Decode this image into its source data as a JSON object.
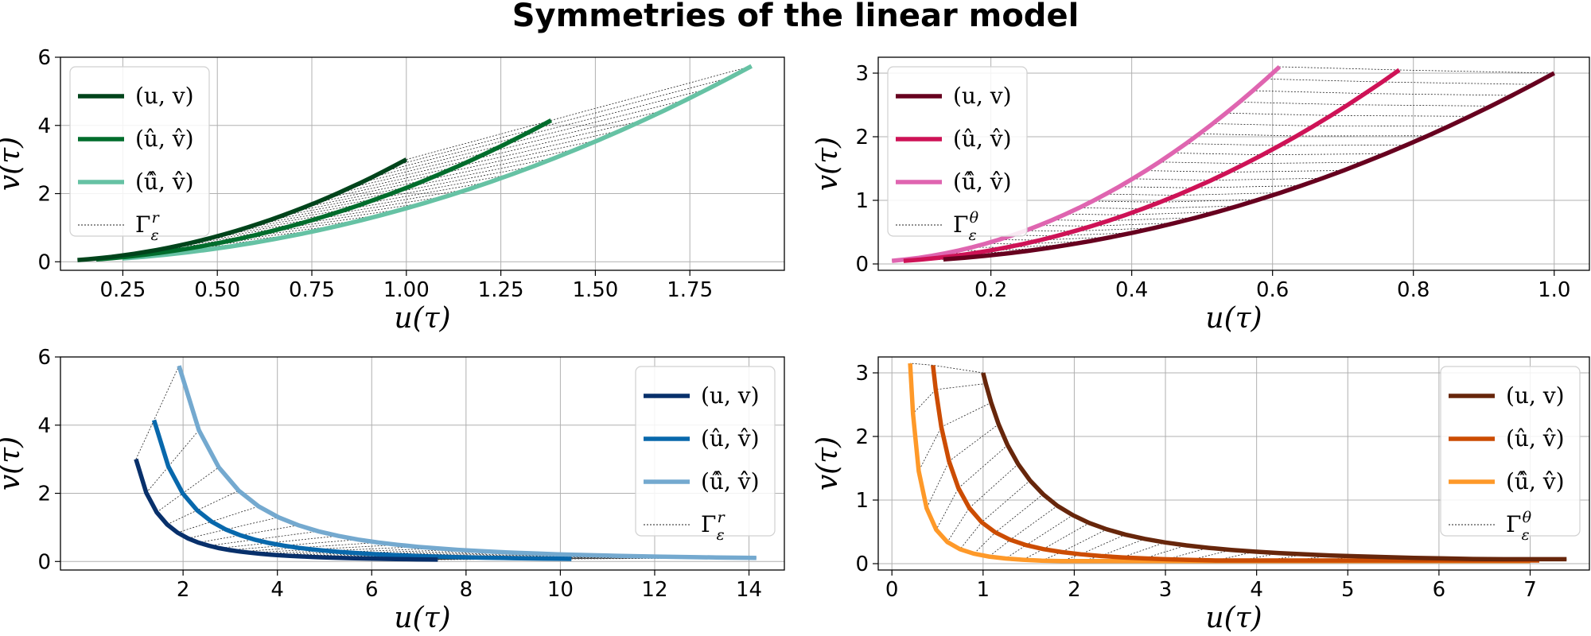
{
  "figure": {
    "title": "Symmetries of the linear model"
  },
  "chart_data": [
    {
      "type": "line",
      "panel": "top-left",
      "xlabel": "u(τ)",
      "ylabel": "v(τ)",
      "xlim": [
        0.085,
        2.0
      ],
      "ylim": [
        -0.25,
        6.0
      ],
      "xticks": [
        "0.25",
        "0.50",
        "0.75",
        "1.00",
        "1.25",
        "1.50",
        "1.75"
      ],
      "yticks": [
        "0",
        "2",
        "4",
        "6"
      ],
      "grid": true,
      "legend_position": "top-left",
      "legend": [
        "(u, v)",
        "(û, v̂)",
        "(û̂, v̂̂)",
        "Γ_ε^r"
      ],
      "transform": "scaling",
      "u_range": [
        0.13,
        1.0
      ],
      "series": [
        {
          "name": "(u, v)",
          "color": "#00441b",
          "scale": 1.0
        },
        {
          "name": "(û, v̂)",
          "color": "#006d2c",
          "scale": 1.383
        },
        {
          "name": "(û̂, v̂̂)",
          "color": "#66c2a4",
          "scale": 1.913
        }
      ]
    },
    {
      "type": "line",
      "panel": "top-right",
      "xlabel": "u(τ)",
      "ylabel": "v(τ)",
      "xlim": [
        0.04,
        1.05
      ],
      "ylim": [
        -0.1,
        3.25
      ],
      "xticks": [
        "0.2",
        "0.4",
        "0.6",
        "0.8",
        "1.0"
      ],
      "yticks": [
        "0",
        "1",
        "2",
        "3"
      ],
      "grid": true,
      "legend_position": "top-left",
      "legend": [
        "(u, v)",
        "(û, v̂)",
        "(û̂, v̂̂)",
        "Γ_ε^θ"
      ],
      "transform": "rotation",
      "u_range": [
        0.13,
        1.0
      ],
      "series": [
        {
          "name": "(u, v)",
          "color": "#67001f",
          "end": [
            1.0,
            3.0
          ]
        },
        {
          "name": "(û, v̂)",
          "color": "#ce1256",
          "end": [
            0.78,
            3.05
          ]
        },
        {
          "name": "(û̂, v̂̂)",
          "color": "#df65b0",
          "end": [
            0.61,
            3.1
          ]
        }
      ]
    },
    {
      "type": "line",
      "panel": "bottom-left",
      "xlabel": "u(τ)",
      "ylabel": "v(τ)",
      "xlim": [
        -0.6,
        14.75
      ],
      "ylim": [
        -0.25,
        6.0
      ],
      "xticks": [
        "2",
        "4",
        "6",
        "8",
        "10",
        "12",
        "14"
      ],
      "yticks": [
        "0",
        "2",
        "4",
        "6"
      ],
      "grid": true,
      "legend_position": "top-right",
      "legend": [
        "(u, v)",
        "(û, v̂)",
        "(û̂, v̂̂)",
        "Γ_ε^r"
      ],
      "transform": "scaling",
      "u_range": [
        1.0,
        7.4
      ],
      "series": [
        {
          "name": "(u, v)",
          "color": "#08306b",
          "scale": 1.0
        },
        {
          "name": "(û, v̂)",
          "color": "#0868ac",
          "scale": 1.383
        },
        {
          "name": "(û̂, v̂̂)",
          "color": "#74a9cf",
          "scale": 1.913
        }
      ]
    },
    {
      "type": "line",
      "panel": "bottom-right",
      "xlabel": "u(τ)",
      "ylabel": "v(τ)",
      "xlim": [
        -0.15,
        7.65
      ],
      "ylim": [
        -0.1,
        3.25
      ],
      "xticks": [
        "0",
        "1",
        "2",
        "3",
        "4",
        "5",
        "6",
        "7"
      ],
      "yticks": [
        "0",
        "1",
        "2",
        "3"
      ],
      "grid": true,
      "legend_position": "top-right",
      "legend": [
        "(u, v)",
        "(û, v̂)",
        "(û̂, v̂̂)",
        "Γ_ε^θ"
      ],
      "transform": "rotation",
      "u_range": [
        1.0,
        7.4
      ],
      "series": [
        {
          "name": "(u, v)",
          "color": "#67260b",
          "start": [
            1.0,
            3.0
          ],
          "end": [
            7.4,
            0.07
          ]
        },
        {
          "name": "(û, v̂)",
          "color": "#cc4c02",
          "start": [
            0.45,
            3.12
          ],
          "end": [
            7.1,
            0.05
          ]
        },
        {
          "name": "(û̂, v̂̂)",
          "color": "#fe9929",
          "start": [
            0.2,
            3.15
          ],
          "end": [
            7.0,
            0.04
          ]
        }
      ]
    }
  ]
}
